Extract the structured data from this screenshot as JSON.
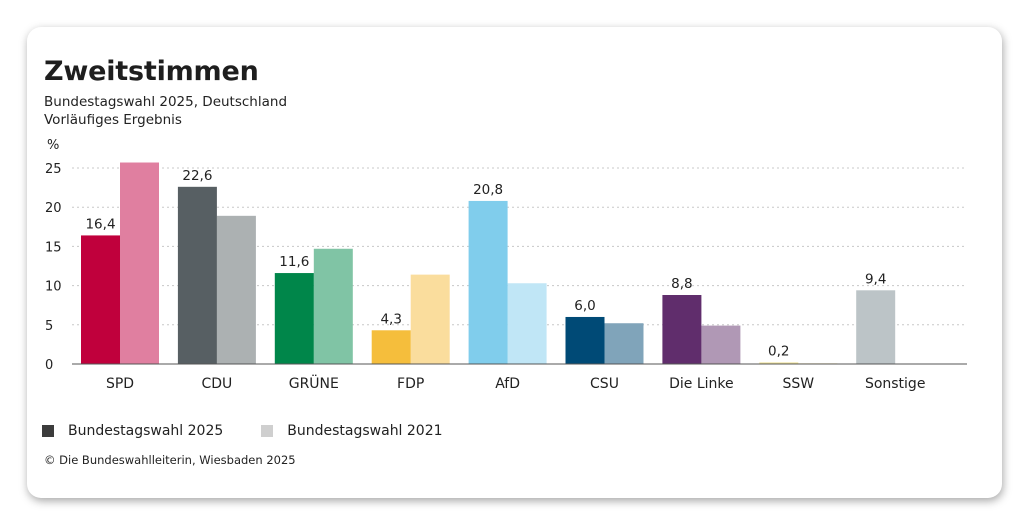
{
  "header": {
    "title": "Zweitstimmen",
    "subtitle_line1": "Bundestagswahl 2025, Deutschland",
    "subtitle_line2": "Vorläufiges Ergebnis"
  },
  "legend": {
    "items": [
      {
        "label": "Bundestagswahl 2025",
        "color": "#3c3c3c"
      },
      {
        "label": "Bundestagswahl 2021",
        "color": "#cfcfcf"
      }
    ]
  },
  "credit": "© Die Bundeswahlleiterin, Wiesbaden 2025",
  "chart_data": {
    "type": "bar",
    "title": "Zweitstimmen",
    "subtitle": "Bundestagswahl 2025, Deutschland / Vorläufiges Ergebnis",
    "ylabel": "%",
    "xlabel": "",
    "ylim": [
      0,
      25
    ],
    "yticks": [
      0,
      5,
      10,
      15,
      20,
      25
    ],
    "grid": true,
    "legend_position": "bottom-left",
    "categories": [
      "SPD",
      "CDU",
      "GRÜNE",
      "FDP",
      "AfD",
      "CSU",
      "Die Linke",
      "SSW",
      "Sonstige"
    ],
    "series": [
      {
        "name": "Bundestagswahl 2025",
        "values": [
          16.4,
          22.6,
          11.6,
          4.3,
          20.8,
          6.0,
          8.8,
          0.2,
          9.4
        ],
        "labels": [
          "16,4",
          "22,6",
          "11,6",
          "4,3",
          "20,8",
          "6,0",
          "8,8",
          "0,2",
          "9,4"
        ]
      },
      {
        "name": "Bundestagswahl 2021",
        "values": [
          25.7,
          18.9,
          14.7,
          11.4,
          10.3,
          5.2,
          4.9,
          0.1,
          null
        ]
      }
    ],
    "colors_2025": [
      "#c0003c",
      "#575f63",
      "#00864a",
      "#f5be3c",
      "#80cdec",
      "#004a76",
      "#602d6c",
      "#f0e296",
      "#bcc4c7"
    ],
    "colors_2021": [
      "#e07fa0",
      "#acb1b2",
      "#80c4a5",
      "#fadd9d",
      "#c0e6f6",
      "#80a4ba",
      "#b098b5",
      "#f6edc6",
      "#dde1e3"
    ]
  }
}
